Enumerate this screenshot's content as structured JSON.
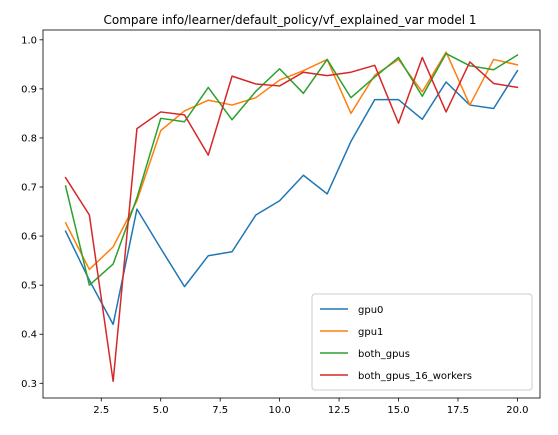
{
  "chart_data": {
    "type": "line",
    "title": "Compare info/learner/default_policy/vf_explained_var model 1",
    "xlabel": "",
    "ylabel": "",
    "xlim": [
      0.05,
      20.95
    ],
    "ylim": [
      0.27,
      1.02
    ],
    "xticks": [
      2.5,
      5.0,
      7.5,
      10.0,
      12.5,
      15.0,
      17.5,
      20.0
    ],
    "xtick_labels": [
      "2.5",
      "5.0",
      "7.5",
      "10.0",
      "12.5",
      "15.0",
      "17.5",
      "20.0"
    ],
    "yticks": [
      0.3,
      0.4,
      0.5,
      0.6,
      0.7,
      0.8,
      0.9,
      1.0
    ],
    "ytick_labels": [
      "0.3",
      "0.4",
      "0.5",
      "0.6",
      "0.7",
      "0.8",
      "0.9",
      "1.0"
    ],
    "x": [
      1,
      2,
      3,
      4,
      5,
      6,
      7,
      8,
      9,
      10,
      11,
      12,
      13,
      14,
      15,
      16,
      17,
      18,
      19,
      20
    ],
    "legend_position": "lower-right",
    "grid": false,
    "series": [
      {
        "name": "gpu0",
        "color": "#1f77b4",
        "values": [
          0.61,
          0.51,
          0.42,
          0.655,
          0.575,
          0.497,
          0.56,
          0.568,
          0.643,
          0.672,
          0.724,
          0.686,
          0.793,
          0.878,
          0.878,
          0.838,
          0.914,
          0.867,
          0.86,
          0.937
        ]
      },
      {
        "name": "gpu1",
        "color": "#ff7f0e",
        "values": [
          0.627,
          0.532,
          0.578,
          0.672,
          0.815,
          0.855,
          0.877,
          0.867,
          0.882,
          0.918,
          0.937,
          0.96,
          0.85,
          0.928,
          0.96,
          0.894,
          0.975,
          0.867,
          0.96,
          0.949
        ]
      },
      {
        "name": "both_gpus",
        "color": "#2ca02c",
        "values": [
          0.702,
          0.5,
          0.543,
          0.678,
          0.84,
          0.833,
          0.903,
          0.837,
          0.895,
          0.941,
          0.891,
          0.96,
          0.882,
          0.924,
          0.964,
          0.885,
          0.972,
          0.947,
          0.939,
          0.969
        ]
      },
      {
        "name": "both_gpus_16_workers",
        "color": "#d62728",
        "values": [
          0.719,
          0.643,
          0.304,
          0.819,
          0.853,
          0.847,
          0.765,
          0.926,
          0.91,
          0.906,
          0.934,
          0.927,
          0.934,
          0.948,
          0.83,
          0.964,
          0.853,
          0.955,
          0.911,
          0.903
        ]
      }
    ]
  }
}
